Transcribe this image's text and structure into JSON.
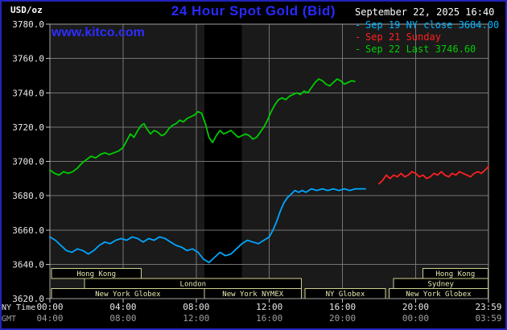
{
  "colors": {
    "frame": "#2323bb",
    "title": "#2929ff",
    "watermark": "#2d2dff",
    "datetime": "#ffffff",
    "units": "#ffffff",
    "plot_bg": "#1a1a1a",
    "grid": "#747474",
    "plot_border": "#a0a0a0",
    "tick": "#c0c0c0",
    "y_label": "#e8e8e8",
    "ny_label": "#e8e8e8",
    "gmt_label": "#9e9e9e",
    "session_border": "#cfcf8e",
    "session_text": "#e9e9b2"
  },
  "header": {
    "units": "USD/oz",
    "title": "24 Hour Spot Gold (Bid)",
    "datetime": "September 22, 2025 16:40",
    "watermark": "www.kitco.com"
  },
  "legend": {
    "items": [
      {
        "marker": "-",
        "label": "Sep 19 NY close 3684.00",
        "color": "#00b4ff"
      },
      {
        "marker": "-",
        "label": "Sep 21 Sunday",
        "color": "#ff2020"
      },
      {
        "marker": "-",
        "label": "Sep 22 Last 3746.60",
        "color": "#00cc00"
      }
    ]
  },
  "sessions": {
    "rows": [
      [
        {
          "label": "Hong Kong",
          "from": 0.08,
          "to": 5.0
        },
        {
          "label": "Hong Kong",
          "from": 20.4,
          "to": 23.95
        }
      ],
      [
        {
          "label": "London",
          "from": 1.9,
          "to": 13.75
        },
        {
          "label": "Sydney",
          "from": 18.8,
          "to": 23.95
        }
      ],
      [
        {
          "label": "New York Globex",
          "from": 0.08,
          "to": 8.45
        },
        {
          "label": "New York NYMEX",
          "from": 8.45,
          "to": 13.75
        },
        {
          "label": "NY Globex",
          "from": 13.95,
          "to": 18.35
        },
        {
          "label": "New York Globex",
          "from": 18.55,
          "to": 23.95
        }
      ]
    ]
  },
  "chart_data": {
    "type": "line",
    "title": "24 Hour Spot Gold (Bid)",
    "ylabel": "USD/oz",
    "xlabel": "NY Time / GMT",
    "xlim": [
      0,
      23.983
    ],
    "ylim": [
      3620,
      3780
    ],
    "grid": true,
    "legend_position": "top-right",
    "x_axis_rows": [
      {
        "label": "NY Time",
        "key": "ny"
      },
      {
        "label": "GMT",
        "key": "gmt"
      }
    ],
    "x_ticks": [
      {
        "h": 0,
        "ny": "00:00",
        "gmt": "04:00"
      },
      {
        "h": 4,
        "ny": "04:00",
        "gmt": "08:00"
      },
      {
        "h": 8,
        "ny": "08:00",
        "gmt": "12:00"
      },
      {
        "h": 12,
        "ny": "12:00",
        "gmt": "16:00"
      },
      {
        "h": 16,
        "ny": "16:00",
        "gmt": "20:00"
      },
      {
        "h": 20,
        "ny": "20:00",
        "gmt": "00:00"
      },
      {
        "h": 23.983,
        "ny": "23:59",
        "gmt": "03:59"
      }
    ],
    "x_gridlines": [
      4,
      8,
      12,
      16,
      20
    ],
    "y_ticks": [
      {
        "v": 3780,
        "label": "3780.0"
      },
      {
        "v": 3760,
        "label": "3760.0"
      },
      {
        "v": 3740,
        "label": "3740.0"
      },
      {
        "v": 3720,
        "label": "3720.0"
      },
      {
        "v": 3700,
        "label": "3700.0"
      },
      {
        "v": 3680,
        "label": "3680.0"
      },
      {
        "v": 3660,
        "label": "3660.0"
      },
      {
        "v": 3640,
        "label": "3640.0"
      },
      {
        "v": 3620,
        "label": "3620.0"
      }
    ],
    "bands": [
      {
        "from": 8.45,
        "to": 10.5,
        "color": "#000000"
      }
    ],
    "series": [
      {
        "id": "sep19",
        "name": "Sep 19 NY close 3684.00",
        "color": "#00a6ff",
        "points": [
          [
            0,
            3656
          ],
          [
            0.3,
            3654
          ],
          [
            0.6,
            3651
          ],
          [
            0.9,
            3648
          ],
          [
            1.2,
            3647
          ],
          [
            1.5,
            3649
          ],
          [
            1.8,
            3648
          ],
          [
            2.1,
            3646
          ],
          [
            2.4,
            3648
          ],
          [
            2.7,
            3651
          ],
          [
            3,
            3653
          ],
          [
            3.3,
            3652
          ],
          [
            3.6,
            3654
          ],
          [
            3.9,
            3655
          ],
          [
            4.2,
            3654
          ],
          [
            4.5,
            3656
          ],
          [
            4.8,
            3655
          ],
          [
            5.1,
            3653
          ],
          [
            5.4,
            3655
          ],
          [
            5.7,
            3654
          ],
          [
            6,
            3656
          ],
          [
            6.3,
            3655
          ],
          [
            6.6,
            3653
          ],
          [
            6.9,
            3651
          ],
          [
            7.2,
            3650
          ],
          [
            7.5,
            3648
          ],
          [
            7.8,
            3649
          ],
          [
            8.1,
            3647
          ],
          [
            8.4,
            3643
          ],
          [
            8.7,
            3641
          ],
          [
            9,
            3644
          ],
          [
            9.3,
            3647
          ],
          [
            9.6,
            3645
          ],
          [
            9.9,
            3646
          ],
          [
            10.2,
            3649
          ],
          [
            10.5,
            3652
          ],
          [
            10.8,
            3654
          ],
          [
            11.1,
            3653
          ],
          [
            11.4,
            3652
          ],
          [
            11.7,
            3654
          ],
          [
            12,
            3656
          ],
          [
            12.2,
            3660
          ],
          [
            12.4,
            3665
          ],
          [
            12.6,
            3671
          ],
          [
            12.8,
            3676
          ],
          [
            13,
            3679
          ],
          [
            13.2,
            3681
          ],
          [
            13.4,
            3683
          ],
          [
            13.6,
            3682
          ],
          [
            13.8,
            3683
          ],
          [
            14,
            3682
          ],
          [
            14.3,
            3684
          ],
          [
            14.6,
            3683
          ],
          [
            14.9,
            3684
          ],
          [
            15.2,
            3683
          ],
          [
            15.5,
            3684
          ],
          [
            15.8,
            3683
          ],
          [
            16.1,
            3684
          ],
          [
            16.4,
            3683
          ],
          [
            16.7,
            3684
          ],
          [
            17,
            3684
          ],
          [
            17.25,
            3684
          ]
        ]
      },
      {
        "id": "sep21",
        "name": "Sep 21 Sunday",
        "color": "#ff2020",
        "points": [
          [
            18,
            3687
          ],
          [
            18.2,
            3689
          ],
          [
            18.4,
            3692
          ],
          [
            18.6,
            3690
          ],
          [
            18.8,
            3692
          ],
          [
            19,
            3691
          ],
          [
            19.2,
            3693
          ],
          [
            19.4,
            3691
          ],
          [
            19.6,
            3692
          ],
          [
            19.8,
            3694
          ],
          [
            20,
            3693
          ],
          [
            20.2,
            3691
          ],
          [
            20.4,
            3692
          ],
          [
            20.6,
            3690
          ],
          [
            20.8,
            3691
          ],
          [
            21,
            3693
          ],
          [
            21.2,
            3692
          ],
          [
            21.4,
            3694
          ],
          [
            21.6,
            3692
          ],
          [
            21.8,
            3691
          ],
          [
            22,
            3693
          ],
          [
            22.2,
            3692
          ],
          [
            22.4,
            3694
          ],
          [
            22.6,
            3693
          ],
          [
            22.8,
            3692
          ],
          [
            23,
            3691
          ],
          [
            23.2,
            3693
          ],
          [
            23.4,
            3694
          ],
          [
            23.6,
            3693
          ],
          [
            23.8,
            3695
          ],
          [
            23.983,
            3697
          ]
        ]
      },
      {
        "id": "sep22",
        "name": "Sep 22 Last 3746.60",
        "color": "#00cc00",
        "points": [
          [
            0,
            3695
          ],
          [
            0.25,
            3693
          ],
          [
            0.5,
            3692
          ],
          [
            0.75,
            3694
          ],
          [
            1,
            3693
          ],
          [
            1.25,
            3694
          ],
          [
            1.5,
            3696
          ],
          [
            1.75,
            3699
          ],
          [
            2,
            3701
          ],
          [
            2.25,
            3703
          ],
          [
            2.5,
            3702
          ],
          [
            2.75,
            3704
          ],
          [
            3,
            3705
          ],
          [
            3.25,
            3704
          ],
          [
            3.5,
            3705
          ],
          [
            3.75,
            3706
          ],
          [
            4,
            3708
          ],
          [
            4.2,
            3712
          ],
          [
            4.4,
            3716
          ],
          [
            4.6,
            3714
          ],
          [
            4.8,
            3718
          ],
          [
            5,
            3721
          ],
          [
            5.15,
            3722
          ],
          [
            5.3,
            3719
          ],
          [
            5.5,
            3716
          ],
          [
            5.7,
            3718
          ],
          [
            5.9,
            3717
          ],
          [
            6.1,
            3715
          ],
          [
            6.3,
            3716
          ],
          [
            6.5,
            3719
          ],
          [
            6.7,
            3721
          ],
          [
            6.9,
            3722
          ],
          [
            7.1,
            3724
          ],
          [
            7.3,
            3723
          ],
          [
            7.5,
            3725
          ],
          [
            7.7,
            3726
          ],
          [
            7.9,
            3727
          ],
          [
            8.1,
            3729
          ],
          [
            8.3,
            3728
          ],
          [
            8.5,
            3722
          ],
          [
            8.7,
            3714
          ],
          [
            8.9,
            3711
          ],
          [
            9.1,
            3715
          ],
          [
            9.3,
            3718
          ],
          [
            9.5,
            3716
          ],
          [
            9.7,
            3717
          ],
          [
            9.9,
            3718
          ],
          [
            10.1,
            3716
          ],
          [
            10.3,
            3714
          ],
          [
            10.5,
            3715
          ],
          [
            10.7,
            3716
          ],
          [
            10.9,
            3715
          ],
          [
            11.1,
            3713
          ],
          [
            11.3,
            3714
          ],
          [
            11.5,
            3717
          ],
          [
            11.7,
            3720
          ],
          [
            11.9,
            3724
          ],
          [
            12.1,
            3729
          ],
          [
            12.3,
            3733
          ],
          [
            12.5,
            3736
          ],
          [
            12.7,
            3737
          ],
          [
            12.9,
            3736
          ],
          [
            13.1,
            3738
          ],
          [
            13.3,
            3739
          ],
          [
            13.5,
            3740
          ],
          [
            13.7,
            3739
          ],
          [
            13.9,
            3741
          ],
          [
            14.1,
            3740
          ],
          [
            14.3,
            3743
          ],
          [
            14.5,
            3746
          ],
          [
            14.7,
            3748
          ],
          [
            14.9,
            3747
          ],
          [
            15.1,
            3745
          ],
          [
            15.3,
            3744
          ],
          [
            15.5,
            3746
          ],
          [
            15.7,
            3748
          ],
          [
            15.9,
            3747
          ],
          [
            16.1,
            3745
          ],
          [
            16.3,
            3746
          ],
          [
            16.5,
            3747
          ],
          [
            16.67,
            3746.6
          ]
        ]
      }
    ]
  }
}
